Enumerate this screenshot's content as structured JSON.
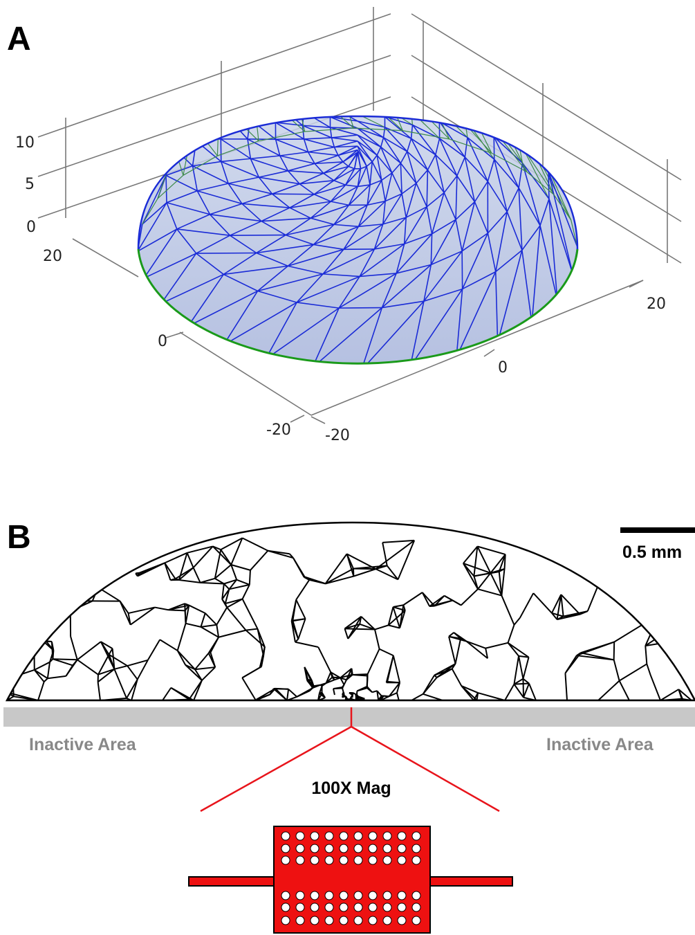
{
  "panels": [
    {
      "label": "A",
      "axes": {
        "z_ticks": [
          10,
          5,
          0
        ],
        "y_ticks": [
          20,
          0,
          -20
        ],
        "x_ticks": [
          -20,
          0,
          20
        ]
      }
    },
    {
      "label": "B",
      "scale_bar": "0.5 mm",
      "left_label": "Inactive Area",
      "right_label": "Inactive Area",
      "magnification": "100X Mag"
    }
  ]
}
